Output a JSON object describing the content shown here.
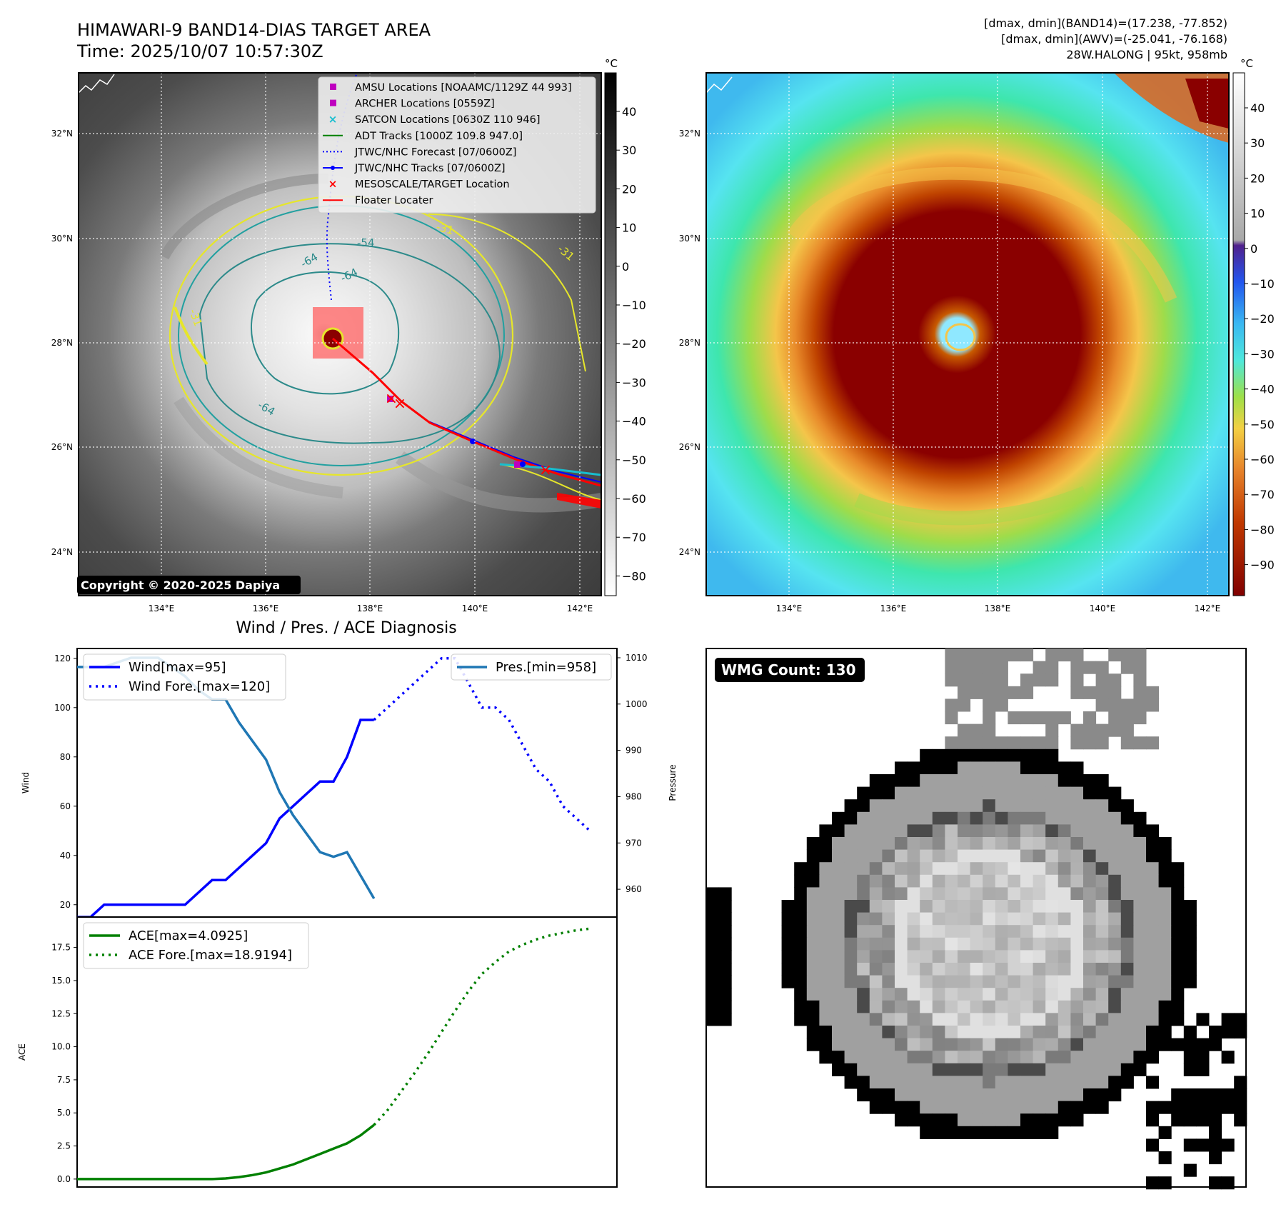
{
  "header": {
    "title_line1": "HIMAWARI-9 BAND14-DIAS TARGET AREA",
    "title_line2": "Time: 2025/10/07 10:57:30Z",
    "info_line1": "[dmax, dmin](BAND14)=(17.238, -77.852)",
    "info_line2": "[dmax, dmin](AWV)=(-25.041, -76.168)",
    "info_line3": "28W.HALONG | 95kt, 958mb"
  },
  "map": {
    "lat_labels": [
      "24°N",
      "26°N",
      "28°N",
      "30°N",
      "32°N"
    ],
    "lon_labels": [
      "134°E",
      "136°E",
      "138°E",
      "140°E",
      "142°E"
    ],
    "copyright": "Copyright © 2020-2025 Dapiya",
    "unit": "°C",
    "contour_labels": [
      "-31",
      "-54",
      "-64",
      "-64",
      "-64",
      "-31",
      "-31"
    ],
    "legend": [
      {
        "label": "AMSU Locations [NOAAMC/1129Z 44 993]",
        "marker": "square",
        "color": "#bf00bf"
      },
      {
        "label": "ARCHER Locations [0559Z]",
        "marker": "square",
        "color": "#bf00bf"
      },
      {
        "label": "SATCON Locations [0630Z 110 946]",
        "marker": "x",
        "color": "#17becf"
      },
      {
        "label": "ADT Tracks [1000Z 109.8 947.0]",
        "marker": "line",
        "color": "#008000"
      },
      {
        "label": "JTWC/NHC Forecast [07/0600Z]",
        "marker": "dotted",
        "color": "#0000ff"
      },
      {
        "label": "JTWC/NHC Tracks [07/0600Z]",
        "marker": "line-dot",
        "color": "#0000ff"
      },
      {
        "label": "MESOSCALE/TARGET Location",
        "marker": "x",
        "color": "#ff0000"
      },
      {
        "label": "Floater Locater",
        "marker": "line",
        "color": "#ff0000"
      }
    ],
    "gray_colorbar_ticks": [
      "40",
      "30",
      "20",
      "10",
      "0",
      "−10",
      "−20",
      "−30",
      "−40",
      "−50",
      "−60",
      "−70",
      "−80"
    ],
    "color_colorbar_ticks": [
      "40",
      "30",
      "20",
      "10",
      "0",
      "−10",
      "−20",
      "−30",
      "−40",
      "−50",
      "−60",
      "−70",
      "−80",
      "−90"
    ]
  },
  "wmg": {
    "count_label": "WMG Count: 130"
  },
  "chart_data": [
    {
      "type": "line",
      "title": "Wind / Pres. / ACE Diagnosis",
      "ylabel": "Wind",
      "ylabel_right": "Pressure",
      "ylim": [
        15,
        124
      ],
      "ylim_right": [
        954,
        1012
      ],
      "xlim": [
        0,
        40
      ],
      "yticks": [
        "20",
        "40",
        "60",
        "80",
        "100",
        "120"
      ],
      "yticks_right": [
        "960",
        "970",
        "980",
        "990",
        "1000",
        "1010"
      ],
      "legend_left": [
        "Wind[max=95]",
        "Wind Fore.[max=120]"
      ],
      "legend_right": [
        "Pres.[min=958]"
      ],
      "series": [
        {
          "name": "Wind[max=95]",
          "color": "#0000ff",
          "style": "solid",
          "axis": "left",
          "x": [
            0,
            1,
            2,
            3,
            4,
            5,
            6,
            7,
            8,
            9,
            10,
            11,
            12,
            13,
            14,
            15,
            16,
            17,
            18,
            19,
            20,
            21,
            22
          ],
          "values": [
            15,
            15,
            20,
            20,
            20,
            20,
            20,
            20,
            20,
            25,
            30,
            30,
            35,
            40,
            45,
            55,
            60,
            65,
            70,
            70,
            80,
            95,
            95
          ]
        },
        {
          "name": "Wind Fore.[max=120]",
          "color": "#0000ff",
          "style": "dotted",
          "axis": "left",
          "x": [
            22,
            23,
            24,
            25,
            26,
            27,
            28,
            29,
            30,
            31,
            32,
            33,
            34,
            35,
            36,
            37,
            38
          ],
          "values": [
            95,
            100,
            105,
            110,
            115,
            120,
            120,
            110,
            100,
            100,
            95,
            85,
            75,
            70,
            60,
            55,
            50
          ]
        },
        {
          "name": "Pres.[min=958]",
          "color": "#1f77b4",
          "style": "solid",
          "axis": "right",
          "x": [
            0,
            1,
            2,
            3,
            4,
            5,
            6,
            7,
            8,
            9,
            10,
            11,
            12,
            13,
            14,
            15,
            16,
            17,
            18,
            19,
            20,
            21,
            22
          ],
          "values": [
            1008,
            1008,
            1008,
            1009,
            1010,
            1010,
            1010,
            1008,
            1006,
            1003,
            1001,
            1001,
            996,
            992,
            988,
            981,
            976,
            972,
            968,
            967,
            968,
            963,
            958
          ]
        }
      ]
    },
    {
      "type": "line",
      "ylabel": "ACE",
      "ylim": [
        -0.6,
        19.8
      ],
      "xlim": [
        0,
        40
      ],
      "yticks": [
        "0.0",
        "2.5",
        "5.0",
        "7.5",
        "10.0",
        "12.5",
        "15.0",
        "17.5"
      ],
      "legend": [
        "ACE[max=4.0925]",
        "ACE Fore.[max=18.9194]"
      ],
      "series": [
        {
          "name": "ACE[max=4.0925]",
          "color": "#008000",
          "style": "solid",
          "x": [
            0,
            2,
            4,
            6,
            8,
            10,
            11,
            12,
            13,
            14,
            15,
            16,
            17,
            18,
            19,
            20,
            21,
            22
          ],
          "values": [
            0,
            0,
            0,
            0,
            0,
            0,
            0.05,
            0.15,
            0.3,
            0.5,
            0.8,
            1.1,
            1.5,
            1.9,
            2.3,
            2.7,
            3.3,
            4.09
          ]
        },
        {
          "name": "ACE Fore.[max=18.9194]",
          "color": "#008000",
          "style": "dotted",
          "x": [
            22,
            23,
            24,
            25,
            26,
            27,
            28,
            29,
            30,
            31,
            32,
            33,
            34,
            35,
            36,
            37,
            38
          ],
          "values": [
            4.09,
            5.2,
            6.6,
            8.0,
            9.5,
            11.1,
            12.7,
            14.2,
            15.5,
            16.4,
            17.2,
            17.7,
            18.1,
            18.4,
            18.6,
            18.8,
            18.92
          ]
        }
      ]
    }
  ]
}
